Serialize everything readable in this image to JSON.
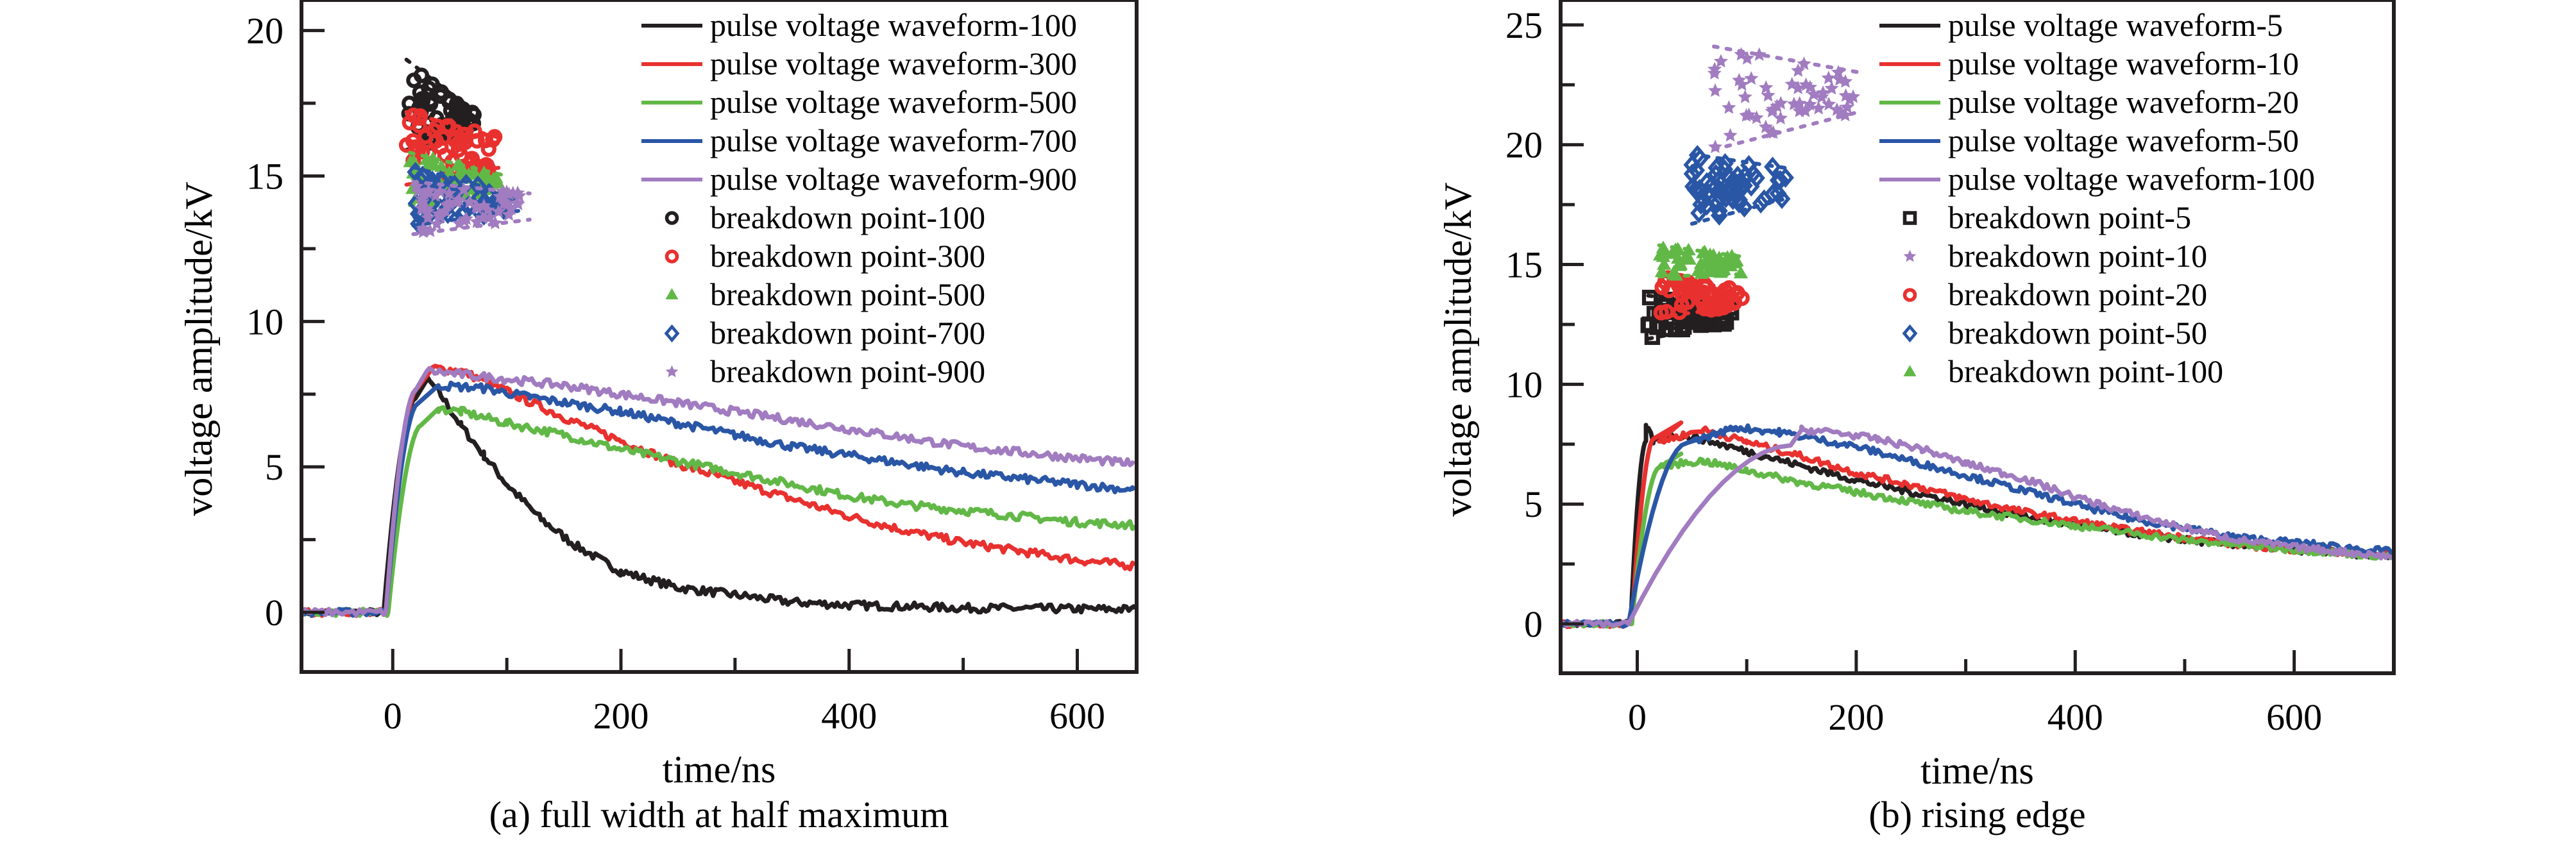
{
  "chart_data": [
    {
      "id": "a",
      "type": "line",
      "caption": "(a) full width at half maximum",
      "title": "",
      "xlabel": "time/ns",
      "ylabel": "voltage amplitude/kV",
      "xlim": [
        -80,
        652
      ],
      "ylim": [
        -2.05,
        21.05
      ],
      "xticks": [
        0,
        200,
        400,
        600
      ],
      "xminor": [
        100,
        300,
        500
      ],
      "yticks": [
        0,
        5,
        10,
        15,
        20
      ],
      "yminor": [
        2.5,
        7.5,
        12.5,
        17.5
      ],
      "grid": false,
      "legend_position": "top-right",
      "series": [
        {
          "name": "pulse voltage waveform-100",
          "kind": "line",
          "color": "#231f20",
          "rise_start": -8,
          "rise_end": 20,
          "peak": 8.0,
          "peak_time": 30,
          "tail": [
            [
              40,
              7.6
            ],
            [
              60,
              6.4
            ],
            [
              80,
              5.4
            ],
            [
              100,
              4.4
            ],
            [
              130,
              3.2
            ],
            [
              160,
              2.3
            ],
            [
              200,
              1.4
            ],
            [
              250,
              0.85
            ],
            [
              300,
              0.6
            ],
            [
              350,
              0.35
            ],
            [
              400,
              0.25
            ],
            [
              500,
              0.15
            ],
            [
              650,
              0.1
            ]
          ]
        },
        {
          "name": "pulse voltage waveform-300",
          "kind": "line",
          "color": "#e8312f",
          "rise_start": -6,
          "rise_end": 22,
          "peak": 8.4,
          "peak_time": 35,
          "tail": [
            [
              60,
              8.3
            ],
            [
              100,
              7.6
            ],
            [
              150,
              6.7
            ],
            [
              200,
              5.9
            ],
            [
              250,
              5.1
            ],
            [
              300,
              4.5
            ],
            [
              350,
              3.9
            ],
            [
              400,
              3.3
            ],
            [
              450,
              2.8
            ],
            [
              500,
              2.4
            ],
            [
              550,
              2.1
            ],
            [
              600,
              1.8
            ],
            [
              650,
              1.6
            ]
          ]
        },
        {
          "name": "pulse voltage waveform-500",
          "kind": "line",
          "color": "#62b847",
          "rise_start": -4,
          "rise_end": 25,
          "peak": 7.0,
          "peak_time": 40,
          "tail": [
            [
              60,
              6.9
            ],
            [
              100,
              6.5
            ],
            [
              150,
              6.1
            ],
            [
              200,
              5.6
            ],
            [
              250,
              5.2
            ],
            [
              300,
              4.8
            ],
            [
              350,
              4.4
            ],
            [
              400,
              4.0
            ],
            [
              450,
              3.7
            ],
            [
              500,
              3.5
            ],
            [
              550,
              3.3
            ],
            [
              600,
              3.1
            ],
            [
              650,
              3.0
            ]
          ]
        },
        {
          "name": "pulse voltage waveform-700",
          "kind": "line",
          "color": "#2a56a6",
          "rise_start": -6,
          "rise_end": 22,
          "peak": 7.8,
          "peak_time": 40,
          "tail": [
            [
              80,
              7.7
            ],
            [
              120,
              7.4
            ],
            [
              200,
              6.9
            ],
            [
              250,
              6.5
            ],
            [
              300,
              6.1
            ],
            [
              350,
              5.7
            ],
            [
              400,
              5.4
            ],
            [
              450,
              5.1
            ],
            [
              500,
              4.8
            ],
            [
              550,
              4.6
            ],
            [
              600,
              4.4
            ],
            [
              650,
              4.2
            ]
          ]
        },
        {
          "name": "pulse voltage waveform-900",
          "kind": "line",
          "color": "#a17cc0",
          "rise_start": -6,
          "rise_end": 20,
          "peak": 8.3,
          "peak_time": 30,
          "tail": [
            [
              80,
              8.1
            ],
            [
              150,
              7.8
            ],
            [
              200,
              7.5
            ],
            [
              250,
              7.2
            ],
            [
              300,
              6.9
            ],
            [
              350,
              6.6
            ],
            [
              400,
              6.3
            ],
            [
              450,
              6.0
            ],
            [
              500,
              5.7
            ],
            [
              550,
              5.5
            ],
            [
              600,
              5.3
            ],
            [
              650,
              5.1
            ]
          ]
        },
        {
          "name": "breakdown point-100",
          "kind": "scatter",
          "marker": "circle",
          "color": "#231f20",
          "x_range": [
            12,
            75
          ],
          "y_top": [
            19.0,
            17.1
          ],
          "y_bottom": [
            15.9,
            16.6
          ]
        },
        {
          "name": "breakdown point-300",
          "kind": "scatter",
          "marker": "circle",
          "color": "#e8312f",
          "x_range": [
            12,
            95
          ],
          "y_top": [
            17.2,
            16.3
          ],
          "y_bottom": [
            14.7,
            15.3
          ]
        },
        {
          "name": "breakdown point-500",
          "kind": "scatter",
          "marker": "triangle",
          "color": "#62b847",
          "x_range": [
            15,
            100
          ],
          "y_top": [
            15.8,
            15.0
          ],
          "y_bottom": [
            14.0,
            14.5
          ]
        },
        {
          "name": "breakdown point-700",
          "kind": "scatter",
          "marker": "diamond",
          "color": "#2a56a6",
          "x_range": [
            18,
            110
          ],
          "y_top": [
            15.3,
            14.3
          ],
          "y_bottom": [
            13.3,
            13.8
          ]
        },
        {
          "name": "breakdown point-900",
          "kind": "scatter",
          "marker": "star",
          "color": "#a17cc0",
          "x_range": [
            18,
            120
          ],
          "y_top": [
            14.8,
            14.4
          ],
          "y_bottom": [
            13.0,
            13.5
          ]
        }
      ]
    },
    {
      "id": "b",
      "type": "line",
      "caption": "(b) rising edge",
      "title": "",
      "xlabel": "time/ns",
      "ylabel": "voltage amplitude/kV",
      "xlim": [
        -70,
        691
      ],
      "ylim": [
        -2.06,
        26.04
      ],
      "xticks": [
        0,
        200,
        400,
        600
      ],
      "xminor": [
        100,
        300,
        500
      ],
      "yticks": [
        0,
        5,
        10,
        15,
        20,
        25
      ],
      "yminor": [
        2.5,
        7.5,
        12.5,
        17.5,
        22.5
      ],
      "grid": false,
      "legend_position": "top-right",
      "series": [
        {
          "name": "pulse voltage waveform-5",
          "kind": "line",
          "color": "#231f20",
          "rise_start": -6,
          "rise_end": 8,
          "peak": 8.3,
          "peak_time": 8,
          "tail": [
            [
              15,
              7.6
            ],
            [
              30,
              7.9
            ],
            [
              60,
              7.7
            ],
            [
              100,
              7.2
            ],
            [
              150,
              6.6
            ],
            [
              200,
              6.0
            ],
            [
              250,
              5.5
            ],
            [
              300,
              5.0
            ],
            [
              350,
              4.5
            ],
            [
              400,
              4.1
            ],
            [
              450,
              3.8
            ],
            [
              500,
              3.5
            ],
            [
              550,
              3.3
            ],
            [
              600,
              3.1
            ],
            [
              691,
              2.8
            ]
          ]
        },
        {
          "name": "pulse voltage waveform-10",
          "kind": "line",
          "color": "#e8312f",
          "rise_start": -5,
          "rise_end": 15,
          "peak": 8.4,
          "peak_time": 40,
          "tail": [
            [
              20,
              7.6
            ],
            [
              60,
              8.1
            ],
            [
              100,
              7.6
            ],
            [
              150,
              7.0
            ],
            [
              200,
              6.3
            ],
            [
              250,
              5.8
            ],
            [
              300,
              5.2
            ],
            [
              350,
              4.7
            ],
            [
              400,
              4.3
            ],
            [
              450,
              3.9
            ],
            [
              500,
              3.6
            ],
            [
              550,
              3.3
            ],
            [
              600,
              3.1
            ],
            [
              691,
              2.9
            ]
          ]
        },
        {
          "name": "pulse voltage waveform-20",
          "kind": "line",
          "color": "#62b847",
          "rise_start": -5,
          "rise_end": 20,
          "peak": 7.1,
          "peak_time": 40,
          "tail": [
            [
              20,
              6.6
            ],
            [
              60,
              6.8
            ],
            [
              100,
              6.4
            ],
            [
              150,
              5.9
            ],
            [
              200,
              5.5
            ],
            [
              250,
              5.1
            ],
            [
              300,
              4.7
            ],
            [
              350,
              4.4
            ],
            [
              400,
              4.1
            ],
            [
              450,
              3.8
            ],
            [
              500,
              3.5
            ],
            [
              550,
              3.3
            ],
            [
              600,
              3.1
            ],
            [
              691,
              2.8
            ]
          ]
        },
        {
          "name": "pulse voltage waveform-50",
          "kind": "line",
          "color": "#2a56a6",
          "rise_start": -8,
          "rise_end": 45,
          "peak": 8.2,
          "peak_time": 90,
          "tail": [
            [
              50,
              7.6
            ],
            [
              90,
              8.2
            ],
            [
              130,
              8.0
            ],
            [
              200,
              7.4
            ],
            [
              250,
              6.8
            ],
            [
              300,
              6.2
            ],
            [
              350,
              5.6
            ],
            [
              400,
              5.0
            ],
            [
              450,
              4.4
            ],
            [
              500,
              4.0
            ],
            [
              550,
              3.6
            ],
            [
              600,
              3.4
            ],
            [
              691,
              3.0
            ]
          ]
        },
        {
          "name": "pulse voltage waveform-100",
          "kind": "line",
          "color": "#a17cc0",
          "rise_start": -8,
          "rise_end": 140,
          "peak": 8.1,
          "peak_time": 150,
          "tail": [
            [
              180,
              8.0
            ],
            [
              220,
              7.7
            ],
            [
              260,
              7.3
            ],
            [
              300,
              6.7
            ],
            [
              350,
              6.1
            ],
            [
              400,
              5.3
            ],
            [
              450,
              4.6
            ],
            [
              500,
              4.0
            ],
            [
              550,
              3.5
            ],
            [
              600,
              3.2
            ],
            [
              691,
              2.8
            ]
          ]
        },
        {
          "name": "breakdown point-5",
          "kind": "scatter",
          "marker": "square",
          "color": "#231f20",
          "x_range": [
            10,
            90
          ],
          "y_top": [
            13.7,
            13.2
          ],
          "y_bottom": [
            11.9,
            12.6
          ]
        },
        {
          "name": "breakdown point-10",
          "kind": "scatter",
          "marker": "star",
          "color": "#a17cc0",
          "x_range": [
            70,
            205
          ],
          "y_top": [
            24.1,
            23.0
          ],
          "y_bottom": [
            19.8,
            21.4
          ]
        },
        {
          "name": "breakdown point-20",
          "kind": "scatter",
          "marker": "circle",
          "color": "#e8312f",
          "x_range": [
            20,
            100
          ],
          "y_top": [
            14.5,
            13.9
          ],
          "y_bottom": [
            12.8,
            13.3
          ]
        },
        {
          "name": "breakdown point-50",
          "kind": "scatter",
          "marker": "diamond",
          "color": "#2a56a6",
          "x_range": [
            50,
            140
          ],
          "y_top": [
            19.6,
            19.0
          ],
          "y_bottom": [
            16.7,
            17.8
          ]
        },
        {
          "name": "breakdown point-100",
          "kind": "scatter",
          "marker": "triangle",
          "color": "#62b847",
          "x_range": [
            20,
            100
          ],
          "y_top": [
            15.8,
            15.3
          ],
          "y_bottom": [
            14.5,
            14.6
          ]
        }
      ]
    }
  ]
}
